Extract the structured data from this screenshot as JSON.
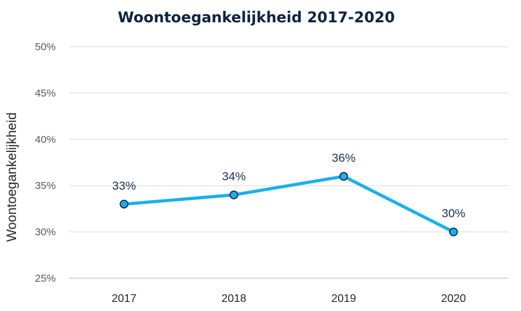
{
  "chart_data": {
    "type": "line",
    "title": "Woontoegankelijkheid 2017-2020",
    "xlabel": "",
    "ylabel": "Woontoegankelijkheid",
    "categories": [
      "2017",
      "2018",
      "2019",
      "2020"
    ],
    "series": [
      {
        "values": [
          33,
          34,
          36,
          30
        ],
        "data_labels": [
          "33%",
          "34%",
          "36%",
          "30%"
        ]
      }
    ],
    "ylim": [
      25,
      50
    ],
    "yticks": [
      "25%",
      "30%",
      "35%",
      "40%",
      "45%",
      "50%"
    ],
    "grid": true,
    "legend": "none",
    "colors": {
      "line": "#1ab0ea",
      "marker_fill": "#1ab0ea",
      "marker_stroke": "#0d2340"
    }
  }
}
